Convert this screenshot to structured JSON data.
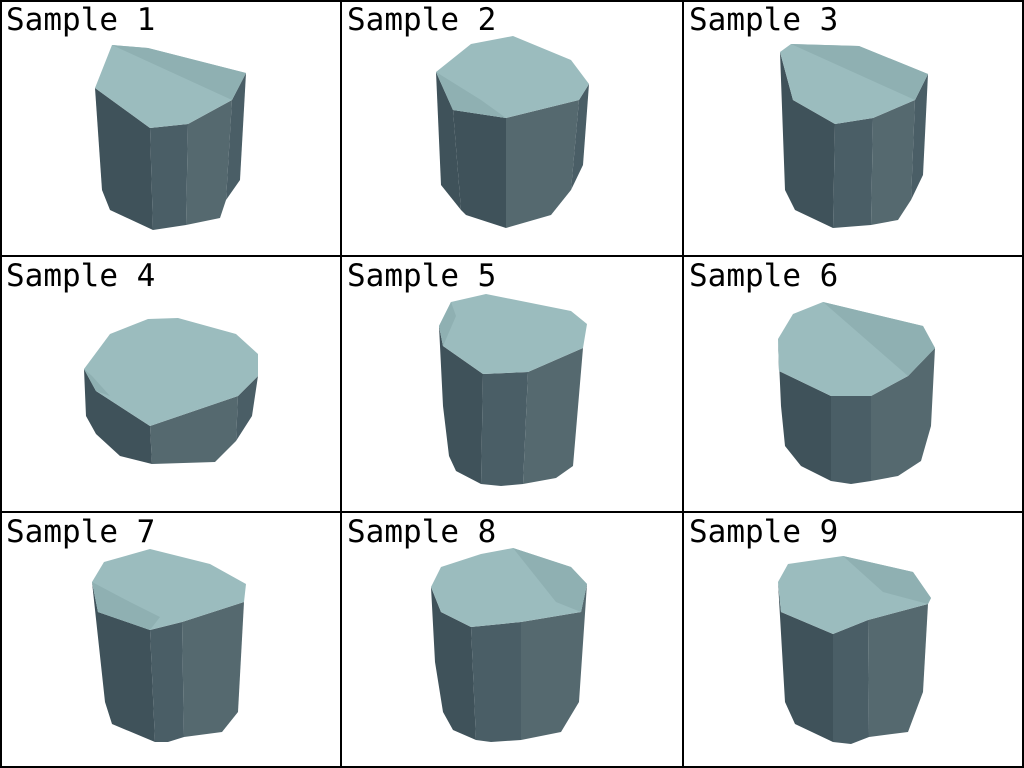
{
  "colors": {
    "background": "#ffffff",
    "grid_line": "#000000",
    "label": "#000000",
    "top_face": "#9bbcbe",
    "top_face_shade": "#8fb0b2",
    "side_dark": "#3f525a",
    "side_mid": "#4a5e66",
    "side_light": "#55696f"
  },
  "samples": [
    {
      "label": "Sample 1"
    },
    {
      "label": "Sample 2"
    },
    {
      "label": "Sample 3"
    },
    {
      "label": "Sample 4"
    },
    {
      "label": "Sample 5"
    },
    {
      "label": "Sample 6"
    },
    {
      "label": "Sample 7"
    },
    {
      "label": "Sample 8"
    },
    {
      "label": "Sample 9"
    }
  ]
}
